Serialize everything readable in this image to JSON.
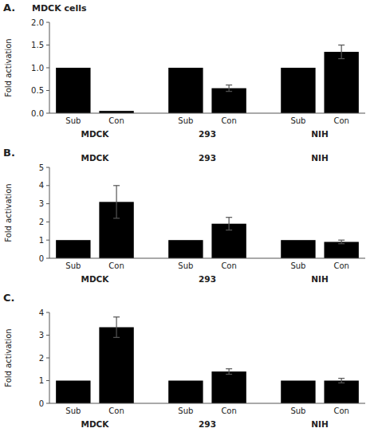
{
  "chart_data": [
    {
      "type": "bar",
      "title": "A.",
      "subtitle": "MDCK cells",
      "categories": [
        "Sub",
        "Con",
        "Sub",
        "Con",
        "Sub",
        "Con"
      ],
      "groups": [
        "MDCK",
        "293",
        "NIH"
      ],
      "values": [
        1.0,
        0.05,
        1.0,
        0.55,
        1.0,
        1.35
      ],
      "errors": [
        0.0,
        0.0,
        0.0,
        0.07,
        0.0,
        0.15
      ],
      "color": "#000000",
      "y_label": "Fold activation",
      "ylim": [
        0,
        2.0
      ],
      "yticks": [
        {
          "value": 0,
          "label": "0.0"
        },
        0.5,
        {
          "value": 1,
          "label": "1.0"
        },
        1.5,
        {
          "value": 2,
          "label": "2.0"
        }
      ],
      "grid": false
    },
    {
      "type": "bar",
      "title": "B.",
      "categories": [
        "Sub",
        "Con",
        "Sub",
        "Con",
        "Sub",
        "Con"
      ],
      "groups": [
        "MDCK",
        "293",
        "NIH"
      ],
      "annotations": [
        "MDCK",
        "293",
        "NIH"
      ],
      "values": [
        1.0,
        3.1,
        1.0,
        1.9,
        1.0,
        0.9
      ],
      "errors": [
        0.0,
        0.9,
        0.0,
        0.35,
        0.0,
        0.1
      ],
      "color": "#000000",
      "y_label": "Fold activation",
      "ylim": [
        0,
        5.0
      ],
      "yticks": [
        0,
        1,
        2,
        3,
        4,
        5
      ],
      "grid": false
    },
    {
      "type": "bar",
      "title": "C.",
      "categories": [
        "Sub",
        "Con",
        "Sub",
        "Con",
        "Sub",
        "Con"
      ],
      "groups": [
        "MDCK",
        "293",
        "NIH"
      ],
      "values": [
        1.0,
        3.35,
        1.0,
        1.4,
        1.0,
        1.0
      ],
      "errors": [
        0.0,
        0.45,
        0.0,
        0.12,
        0.0,
        0.1
      ],
      "color": "#000000",
      "y_label": "Fold activation",
      "ylim": [
        0,
        4.0
      ],
      "yticks": [
        0,
        1,
        2,
        3,
        4
      ],
      "grid": false
    }
  ]
}
